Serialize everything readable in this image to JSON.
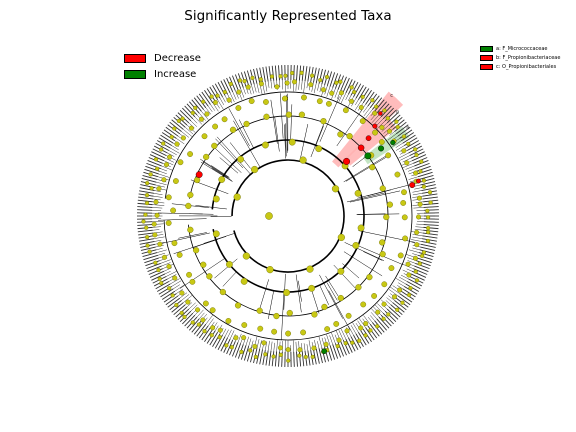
{
  "title": "Significantly Represented Taxa",
  "legend": {
    "items": [
      {
        "label": "Decrease",
        "color": "#ff0000"
      },
      {
        "label": "Increase",
        "color": "#008000"
      }
    ]
  },
  "clade_legend": {
    "items": [
      {
        "text": "a: F_Micrococcaceae",
        "color": "#008000"
      },
      {
        "text": "b: F_Propionibacteriaceae",
        "color": "#ff0000"
      },
      {
        "text": "c: O_Propionibacteriales",
        "color": "#ff0000"
      }
    ]
  },
  "highlight_letters": [
    "a",
    "b",
    "c"
  ],
  "colors": {
    "node": "#c8c814",
    "node_stroke": "#6a6a00",
    "decrease": "#ff0000",
    "increase": "#008000",
    "decrease_shade": "#ffb0b0",
    "increase_shade": "#b8e0b8"
  }
}
